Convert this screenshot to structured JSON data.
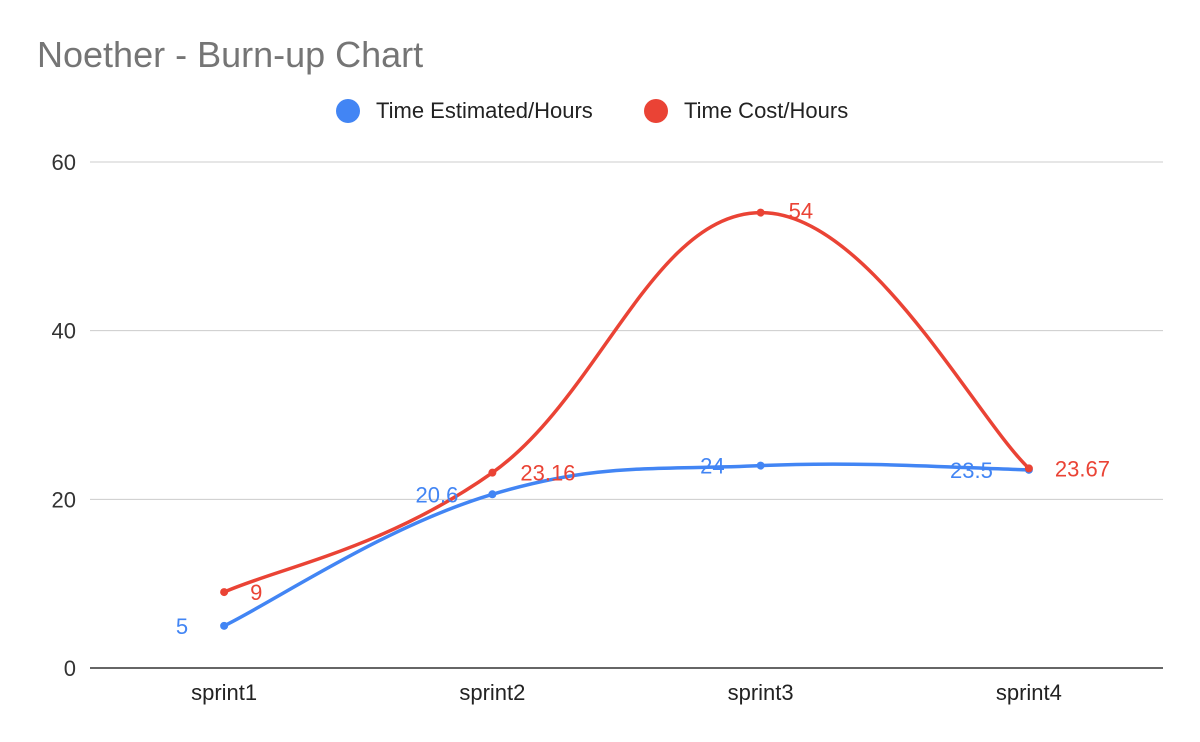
{
  "chart_data": {
    "type": "line",
    "title": "Noether - Burn-up Chart",
    "categories": [
      "sprint1",
      "sprint2",
      "sprint3",
      "sprint4"
    ],
    "series": [
      {
        "name": "Time Estimated/Hours",
        "color": "#4285f4",
        "values": [
          5,
          20.6,
          24,
          23.5
        ]
      },
      {
        "name": "Time Cost/Hours",
        "color": "#ea4335",
        "values": [
          9,
          23.16,
          54,
          23.67
        ]
      }
    ],
    "data_labels": {
      "estimated": [
        "5",
        "20.6",
        "24",
        "23.5"
      ],
      "cost": [
        "9",
        "23.16",
        "54",
        "23.67"
      ]
    },
    "y_ticks": [
      "0",
      "20",
      "40",
      "60"
    ],
    "ylim": [
      0,
      60
    ],
    "xlabel": "",
    "ylabel": "",
    "grid": true,
    "legend_position": "top"
  }
}
